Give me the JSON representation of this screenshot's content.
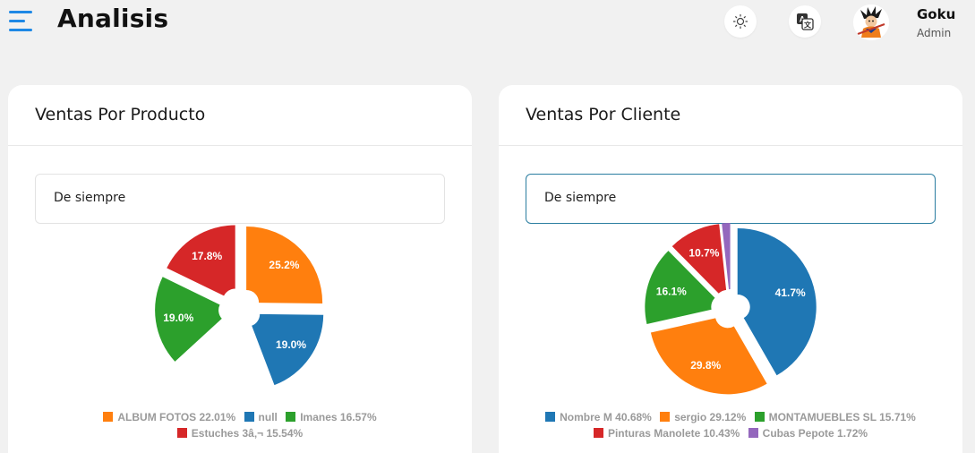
{
  "header": {
    "title": "Analisis",
    "user": {
      "name": "Goku",
      "role": "Admin"
    },
    "icons": {
      "menu": "menu-icon",
      "theme": "sun-icon",
      "translate": "translate-icon"
    }
  },
  "colors": {
    "blue": "#1f77b4",
    "orange": "#ff7f0e",
    "green": "#2ca02c",
    "red": "#d62728",
    "purple": "#9467bd",
    "accent": "#1e88e5"
  },
  "cards": [
    {
      "title": "Ventas Por Producto",
      "filter": "De siempre",
      "legend": [
        "ALBUM FOTOS 22.01%",
        "null",
        "Imanes 16.57%",
        "Estuches 3â‚¬ 15.54%"
      ]
    },
    {
      "title": "Ventas Por Cliente",
      "filter": "De siempre",
      "legend": [
        "Nombre M 40.68%",
        "sergio 29.12%",
        "MONTAMUEBLES SL 15.71%",
        "Pinturas Manolete 10.43%",
        "Cubas Pepote 1.72%"
      ]
    }
  ],
  "chart_data": [
    {
      "type": "pie",
      "title": "Ventas Por Producto",
      "slices": [
        {
          "label": "ALBUM FOTOS 22.01%",
          "value": 25.2,
          "display": "25.2%",
          "color": "#ff7f0e"
        },
        {
          "label": "null",
          "value": 19.0,
          "display": "19.0%",
          "color": "#1f77b4"
        },
        {
          "label": "",
          "value": 19.0,
          "display": "",
          "color": "#ffffff"
        },
        {
          "label": "Imanes 16.57%",
          "value": 19.0,
          "display": "19.0%",
          "color": "#2ca02c"
        },
        {
          "label": "Estuches 3â‚¬ 15.54%",
          "value": 17.8,
          "display": "17.8%",
          "color": "#d62728"
        }
      ],
      "legend_position": "bottom"
    },
    {
      "type": "pie",
      "title": "Ventas Por Cliente",
      "slices": [
        {
          "label": "Nombre M 40.68%",
          "value": 41.7,
          "display": "41.7%",
          "color": "#1f77b4"
        },
        {
          "label": "sergio 29.12%",
          "value": 29.8,
          "display": "29.8%",
          "color": "#ff7f0e"
        },
        {
          "label": "MONTAMUEBLES SL 15.71%",
          "value": 16.1,
          "display": "16.1%",
          "color": "#2ca02c"
        },
        {
          "label": "Pinturas Manolete 10.43%",
          "value": 10.7,
          "display": "10.7%",
          "color": "#d62728"
        },
        {
          "label": "Cubas Pepote 1.72%",
          "value": 1.7,
          "display": "",
          "color": "#9467bd"
        }
      ],
      "legend_position": "bottom"
    }
  ]
}
